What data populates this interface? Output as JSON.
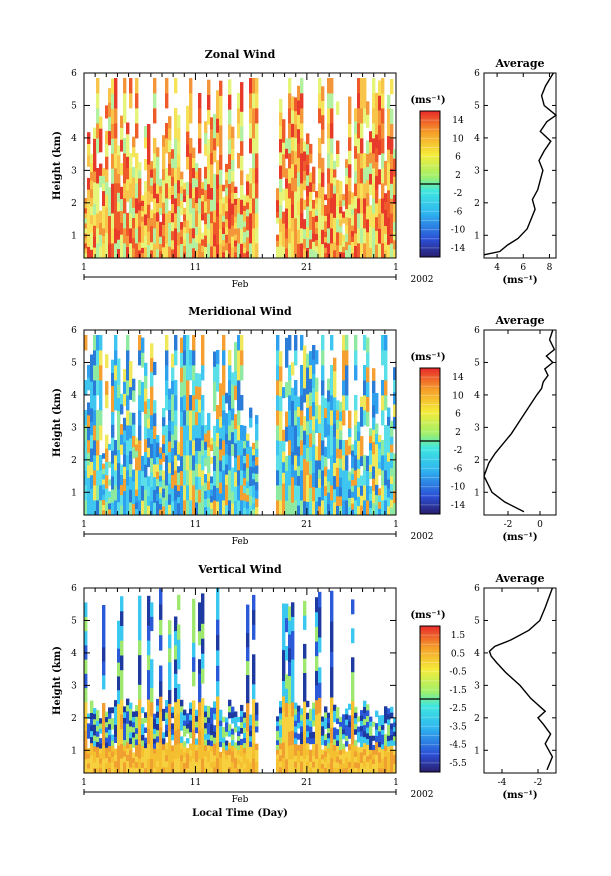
{
  "chart_data": [
    {
      "type": "heatmap",
      "title": "Zonal Wind",
      "ylabel": "Height (km)",
      "ylim": [
        0.3,
        6
      ],
      "yticks": [
        "1",
        "2",
        "3",
        "4",
        "5",
        "6"
      ],
      "x_ticks": [
        "1",
        "11",
        "21",
        "1"
      ],
      "x_month": "Feb",
      "year": "2002",
      "colorbar_unit": "(ms⁻¹)",
      "colorbar_ticks": [
        "14",
        "10",
        "6",
        "2",
        "-2",
        "-6",
        "-10",
        "-14"
      ],
      "colorbar_range": [
        -16,
        16
      ],
      "profile": {
        "title": "Average",
        "xlabel": "(ms⁻¹)",
        "xticks": [
          "4",
          "6",
          "8"
        ],
        "xlim": [
          3,
          8.5
        ],
        "x": [
          3.0,
          4.2,
          4.8,
          5.6,
          6.3,
          6.6,
          6.9,
          6.7,
          7.1,
          7.3,
          7.5,
          7.2,
          7.6,
          8.1,
          7.3,
          7.8,
          8.5,
          7.6,
          7.4,
          7.7,
          8.3
        ],
        "y": [
          0.4,
          0.5,
          0.7,
          0.9,
          1.2,
          1.5,
          1.8,
          2.1,
          2.4,
          2.7,
          3.0,
          3.3,
          3.6,
          3.9,
          4.2,
          4.5,
          4.7,
          5.0,
          5.3,
          5.6,
          6.0
        ]
      }
    },
    {
      "type": "heatmap",
      "title": "Meridional Wind",
      "ylabel": "Height (km)",
      "ylim": [
        0.3,
        6
      ],
      "yticks": [
        "1",
        "2",
        "3",
        "4",
        "5",
        "6"
      ],
      "x_ticks": [
        "1",
        "11",
        "21",
        "1"
      ],
      "x_month": "Feb",
      "year": "2002",
      "colorbar_unit": "(ms⁻¹)",
      "colorbar_ticks": [
        "14",
        "10",
        "6",
        "2",
        "-2",
        "-6",
        "-10",
        "-14"
      ],
      "colorbar_range": [
        -16,
        16
      ],
      "profile": {
        "title": "Average",
        "xlabel": "(ms⁻¹)",
        "xticks": [
          "-2",
          "0"
        ],
        "xlim": [
          -3.5,
          1
        ],
        "x": [
          -1.0,
          -2.2,
          -3.0,
          -3.5,
          -3.2,
          -2.8,
          -2.3,
          -1.8,
          -1.4,
          -1.0,
          -0.6,
          -0.2,
          0.1,
          0.2,
          0.5,
          0.3,
          0.8,
          0.4,
          0.9,
          0.6,
          0.8
        ],
        "y": [
          0.4,
          0.7,
          1.0,
          1.5,
          1.9,
          2.2,
          2.5,
          2.8,
          3.1,
          3.4,
          3.7,
          4.0,
          4.2,
          4.4,
          4.6,
          4.8,
          5.0,
          5.2,
          5.4,
          5.7,
          6.0
        ]
      }
    },
    {
      "type": "heatmap",
      "title": "Vertical Wind",
      "ylabel": "Height (km)",
      "xlabel": "Local Time (Day)",
      "ylim": [
        0.3,
        6
      ],
      "yticks": [
        "1",
        "2",
        "3",
        "4",
        "5",
        "6"
      ],
      "x_ticks": [
        "1",
        "11",
        "21",
        "1"
      ],
      "x_month": "Feb",
      "year": "2002",
      "colorbar_unit": "(ms⁻¹)",
      "colorbar_ticks": [
        "1.5",
        "0.5",
        "-0.5",
        "-1.5",
        "-2.5",
        "-3.5",
        "-4.5",
        "-5.5"
      ],
      "colorbar_range": [
        -6,
        2
      ],
      "profile": {
        "title": "Average",
        "xlabel": "(ms⁻¹)",
        "xticks": [
          "-4",
          "-2"
        ],
        "xlim": [
          -5,
          -1
        ],
        "x": [
          -1.5,
          -1.2,
          -1.6,
          -1.3,
          -1.7,
          -2.0,
          -1.6,
          -2.4,
          -3.0,
          -3.8,
          -4.3,
          -4.6,
          -4.7,
          -4.4,
          -3.5,
          -2.5,
          -1.9,
          -1.6,
          -1.4,
          -1.2
        ],
        "y": [
          0.4,
          0.8,
          1.2,
          1.5,
          1.8,
          2.0,
          2.2,
          2.6,
          3.0,
          3.4,
          3.7,
          3.9,
          4.05,
          4.2,
          4.4,
          4.7,
          5.0,
          5.4,
          5.7,
          6.0
        ]
      }
    }
  ]
}
